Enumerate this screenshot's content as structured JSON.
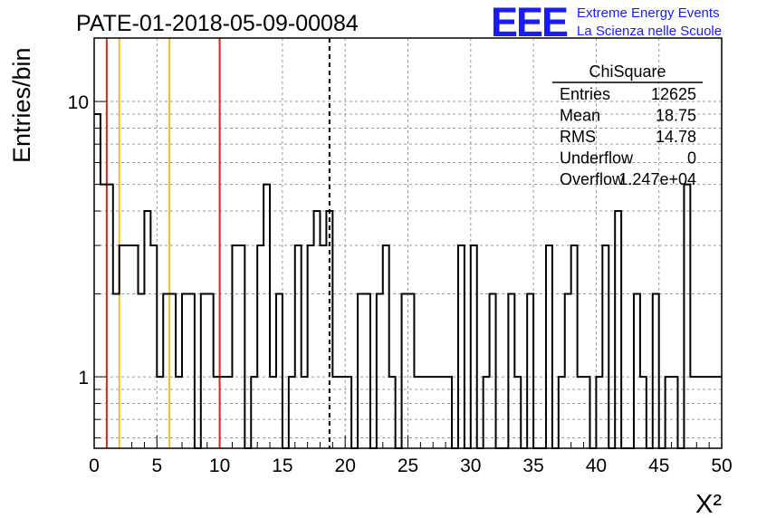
{
  "title": "PATE-01-2018-05-09-00084",
  "logo": {
    "text": "EEE",
    "line1": "Extreme Energy Events",
    "line2": "La Scienza nelle Scuole",
    "color": "#1a1aff"
  },
  "stats": {
    "title": "ChiSquare",
    "rows": [
      {
        "label": "Entries",
        "value": "12625"
      },
      {
        "label": "Mean",
        "value": "18.75"
      },
      {
        "label": "RMS",
        "value": "14.78"
      },
      {
        "label": "Underflow",
        "value": "0"
      },
      {
        "label": "Overflow",
        "value": "1.247e+04"
      }
    ]
  },
  "chart_data": {
    "type": "histogram",
    "ylabel": "Entries/bin",
    "xlabel": "X²",
    "xlim": [
      0,
      50
    ],
    "ylim": [
      0.55,
      17
    ],
    "yscale": "log",
    "x_ticks": [
      "0",
      "5",
      "10",
      "15",
      "20",
      "25",
      "30",
      "35",
      "40",
      "45",
      "50"
    ],
    "y_ticks": [
      "1",
      "10"
    ],
    "grid": true,
    "bins": [
      [
        0,
        0.5,
        9
      ],
      [
        0.5,
        1,
        5
      ],
      [
        1,
        1.5,
        5
      ],
      [
        1.5,
        2,
        2
      ],
      [
        2,
        2.5,
        3
      ],
      [
        2.5,
        3,
        3
      ],
      [
        3,
        3.5,
        3
      ],
      [
        3.5,
        4,
        2
      ],
      [
        4,
        4.5,
        4
      ],
      [
        4.5,
        5,
        3
      ],
      [
        5,
        5.5,
        1
      ],
      [
        5.5,
        6,
        2
      ],
      [
        6,
        6.5,
        2
      ],
      [
        6.5,
        7,
        1
      ],
      [
        7,
        7.5,
        2
      ],
      [
        7.5,
        8,
        2
      ],
      [
        8,
        8.5,
        0.5
      ],
      [
        8.5,
        9,
        2
      ],
      [
        9,
        9.5,
        2
      ],
      [
        9.5,
        10,
        1
      ],
      [
        10,
        10.5,
        1
      ],
      [
        10.5,
        11,
        1
      ],
      [
        11,
        11.5,
        3
      ],
      [
        11.5,
        12,
        3
      ],
      [
        12,
        12.5,
        0.5
      ],
      [
        12.5,
        13,
        1
      ],
      [
        13,
        13.5,
        3
      ],
      [
        13.5,
        14,
        5
      ],
      [
        14,
        14.5,
        1
      ],
      [
        14.5,
        15,
        2
      ],
      [
        15,
        15.5,
        0.5
      ],
      [
        15.5,
        16,
        1
      ],
      [
        16,
        16.5,
        3
      ],
      [
        16.5,
        17,
        1
      ],
      [
        17,
        17.5,
        3
      ],
      [
        17.5,
        18,
        4
      ],
      [
        18,
        18.5,
        3
      ],
      [
        18.5,
        19,
        4
      ],
      [
        19,
        19.5,
        1
      ],
      [
        19.5,
        20,
        1
      ],
      [
        20,
        20.5,
        1
      ],
      [
        20.5,
        21,
        0.5
      ],
      [
        21,
        21.5,
        2
      ],
      [
        21.5,
        22,
        2
      ],
      [
        22,
        22.5,
        0.5
      ],
      [
        22.5,
        23,
        2
      ],
      [
        23,
        23.5,
        3
      ],
      [
        23.5,
        24,
        1
      ],
      [
        24,
        24.5,
        0.5
      ],
      [
        24.5,
        25,
        2
      ],
      [
        25,
        25.5,
        2
      ],
      [
        25.5,
        26,
        1
      ],
      [
        26,
        26.5,
        1
      ],
      [
        26.5,
        27,
        1
      ],
      [
        27,
        27.5,
        1
      ],
      [
        27.5,
        28,
        1
      ],
      [
        28,
        28.5,
        1
      ],
      [
        28.5,
        29,
        0.5
      ],
      [
        29,
        29.5,
        3
      ],
      [
        29.5,
        30,
        0.5
      ],
      [
        30,
        30.5,
        3
      ],
      [
        30.5,
        31,
        0.5
      ],
      [
        31,
        31.5,
        1
      ],
      [
        31.5,
        32,
        2
      ],
      [
        32,
        32.5,
        0.5
      ],
      [
        32.5,
        33,
        0.5
      ],
      [
        33,
        33.5,
        2
      ],
      [
        33.5,
        34,
        1
      ],
      [
        34,
        34.5,
        0.5
      ],
      [
        34.5,
        35,
        2
      ],
      [
        35,
        35.5,
        0.5
      ],
      [
        35.5,
        36,
        0.5
      ],
      [
        36,
        36.5,
        3
      ],
      [
        36.5,
        37,
        0.5
      ],
      [
        37,
        37.5,
        1
      ],
      [
        37.5,
        38,
        2
      ],
      [
        38,
        38.5,
        3
      ],
      [
        38.5,
        39,
        1
      ],
      [
        39,
        39.5,
        1
      ],
      [
        39.5,
        40,
        0.5
      ],
      [
        40,
        40.5,
        1
      ],
      [
        40.5,
        41,
        3
      ],
      [
        41,
        41.5,
        0.5
      ],
      [
        41.5,
        42,
        4
      ],
      [
        42,
        42.5,
        0.5
      ],
      [
        42.5,
        43,
        0.5
      ],
      [
        43,
        43.5,
        2
      ],
      [
        43.5,
        44,
        1
      ],
      [
        44,
        44.5,
        0.5
      ],
      [
        44.5,
        45,
        2
      ],
      [
        45,
        45.5,
        0.5
      ],
      [
        45.5,
        46,
        1
      ],
      [
        46,
        46.5,
        1
      ],
      [
        46.5,
        47,
        0.5
      ],
      [
        47,
        47.5,
        5
      ],
      [
        47.5,
        48,
        1
      ],
      [
        48,
        48.5,
        1
      ],
      [
        48.5,
        49,
        1
      ],
      [
        49,
        49.5,
        1
      ],
      [
        49.5,
        50,
        1
      ]
    ],
    "vlines": [
      {
        "x": 1,
        "color": "#e02020",
        "style": "solid"
      },
      {
        "x": 2,
        "color": "#f0c020",
        "style": "solid"
      },
      {
        "x": 6,
        "color": "#f0c020",
        "style": "solid"
      },
      {
        "x": 10,
        "color": "#e02020",
        "style": "solid"
      },
      {
        "x": 18.75,
        "color": "#000000",
        "style": "dashed"
      }
    ]
  }
}
